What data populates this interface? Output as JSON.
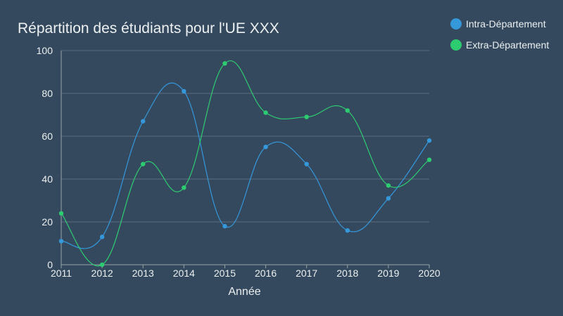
{
  "chart_data": {
    "type": "line",
    "title": "Répartition des étudiants pour l'UE XXX",
    "xlabel": "Année",
    "ylabel": "",
    "x": [
      "2011",
      "2012",
      "2013",
      "2014",
      "2015",
      "2016",
      "2017",
      "2018",
      "2019",
      "2020"
    ],
    "ylim": [
      0,
      100
    ],
    "yticks": [
      0,
      20,
      40,
      60,
      80,
      100
    ],
    "grid": true,
    "smooth": true,
    "legend_position": "top-right",
    "series": [
      {
        "name": "Intra-Département",
        "color": "#3498db",
        "values": [
          11,
          13,
          67,
          81,
          18,
          55,
          47,
          16,
          31,
          58
        ]
      },
      {
        "name": "Extra-Département",
        "color": "#2ecc71",
        "values": [
          24,
          0,
          47,
          36,
          94,
          71,
          69,
          72,
          37,
          49
        ]
      }
    ]
  },
  "colors": {
    "background": "#34495e",
    "text": "#ecf0f1",
    "grid": "#5d6d7e",
    "axis": "#95a5a6"
  }
}
